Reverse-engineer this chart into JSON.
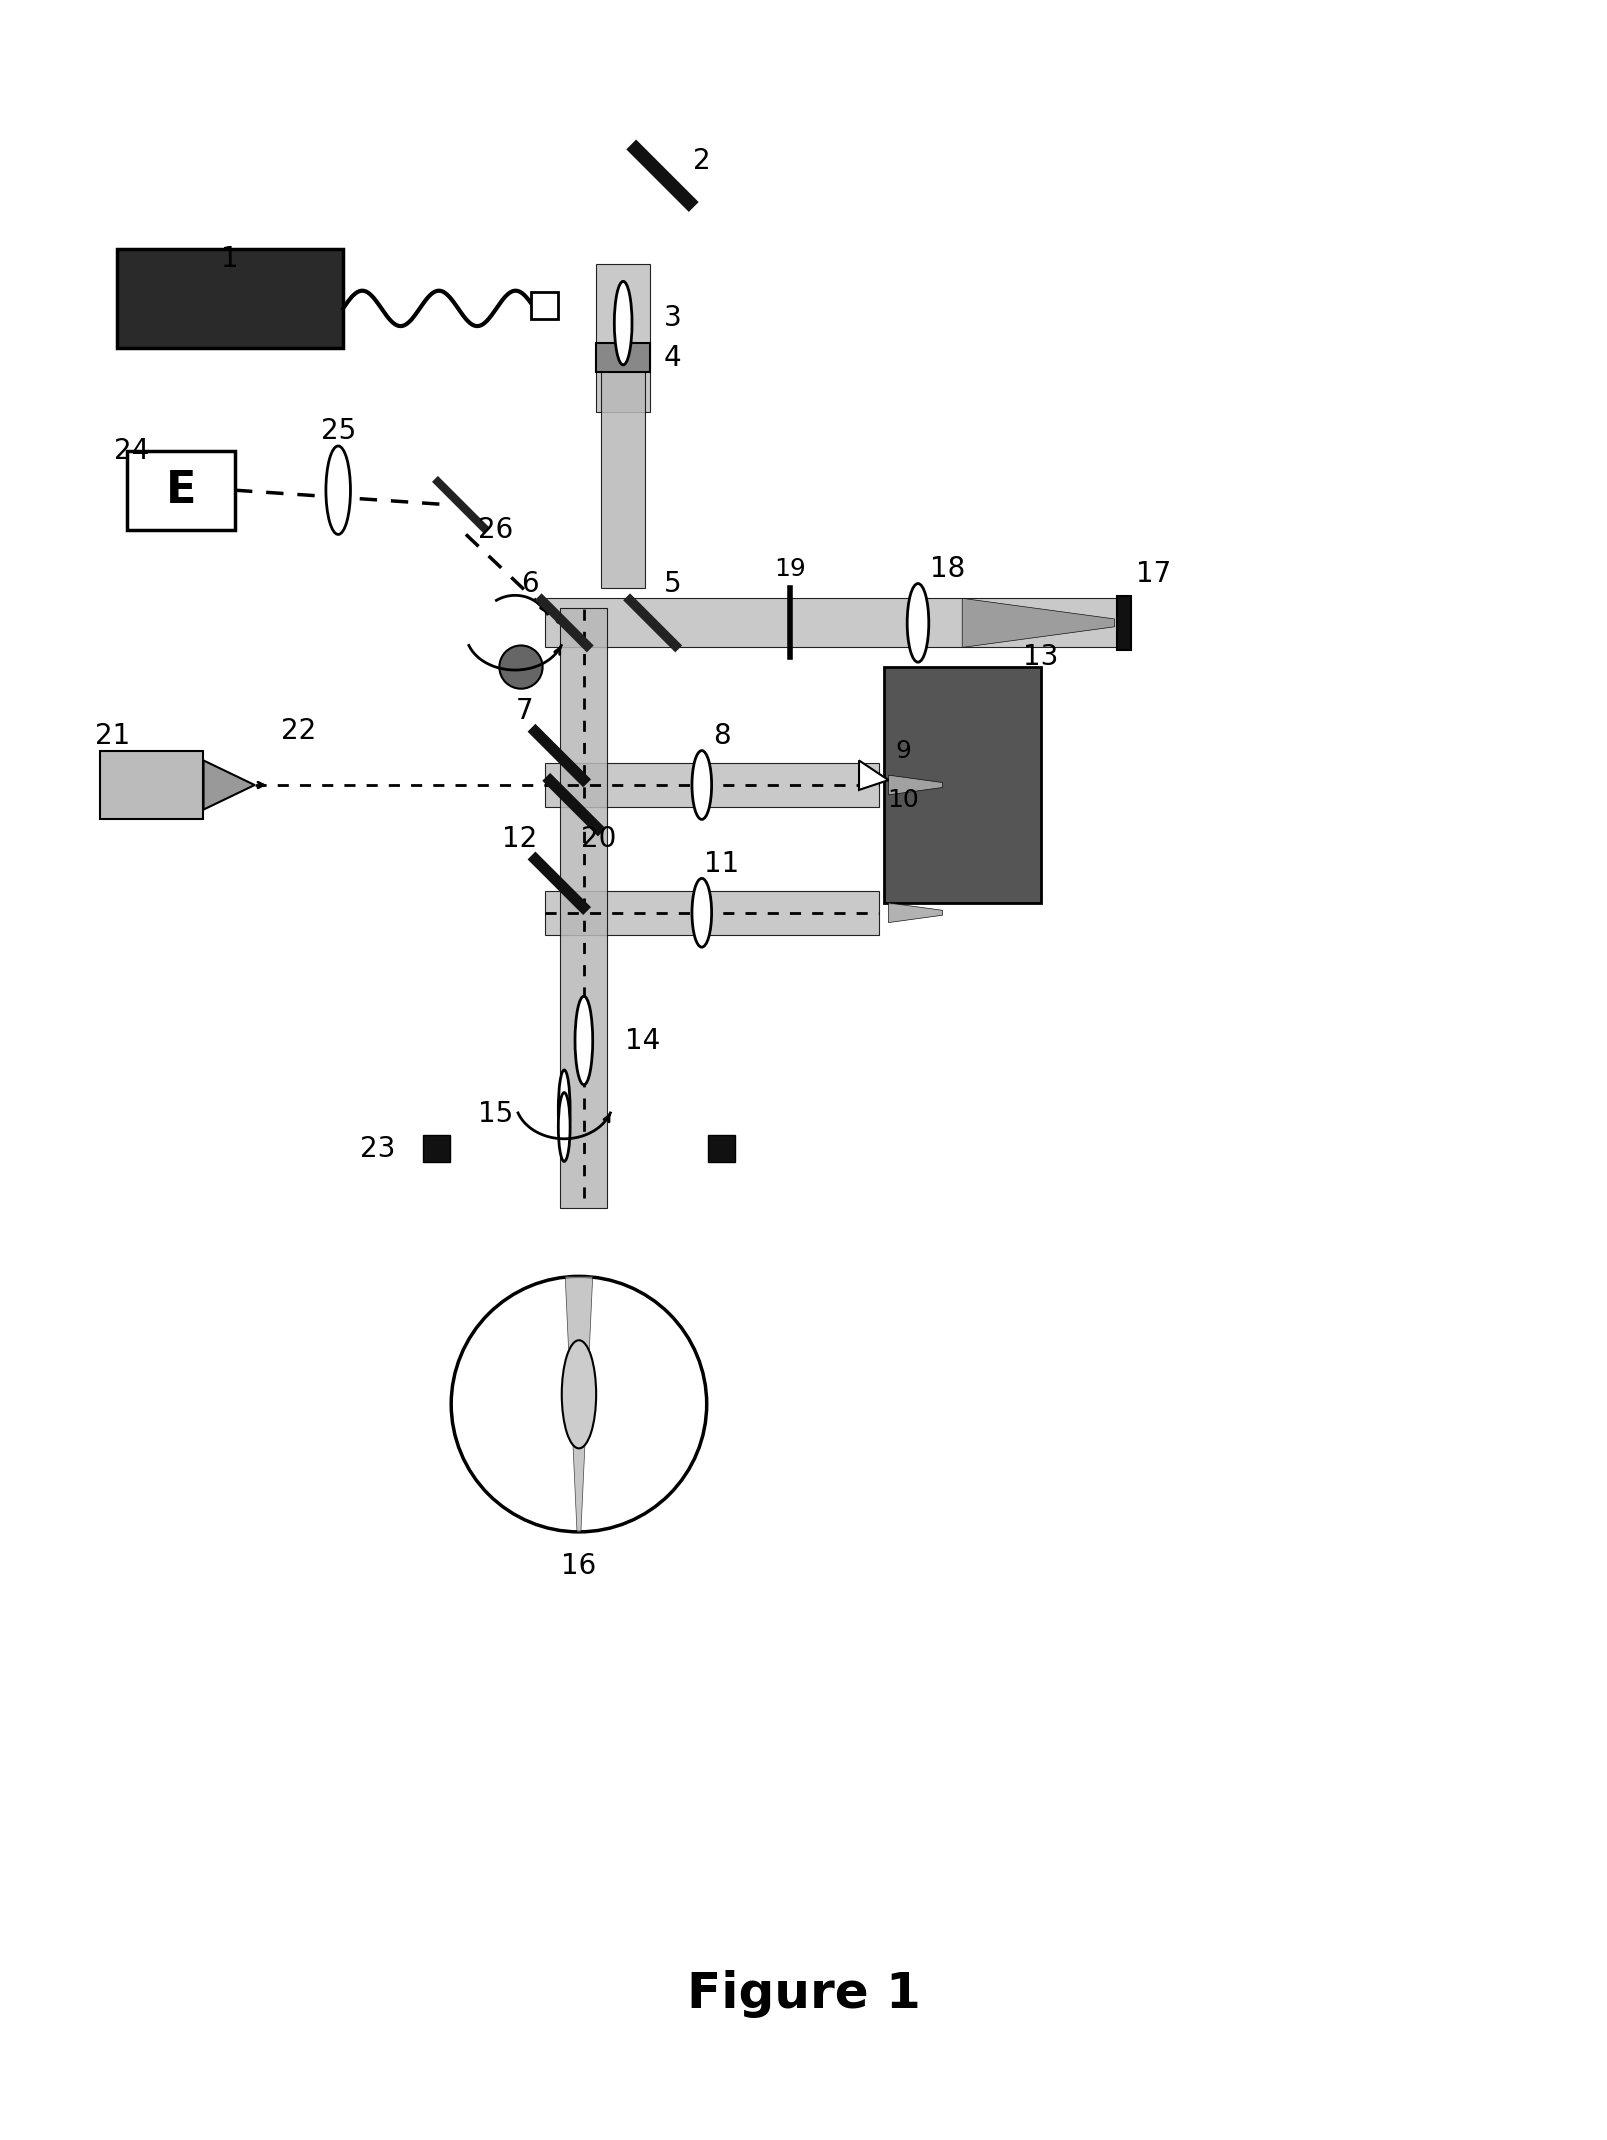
{
  "title": "Figure 1",
  "background": "#ffffff",
  "figsize": [
    16.07,
    21.4
  ],
  "dpi": 100,
  "beam_gray": "#aaaaaa",
  "beam_dark": "#888888",
  "dark_gray": "#555555",
  "black": "#111111",
  "mid_gray": "#999999"
}
